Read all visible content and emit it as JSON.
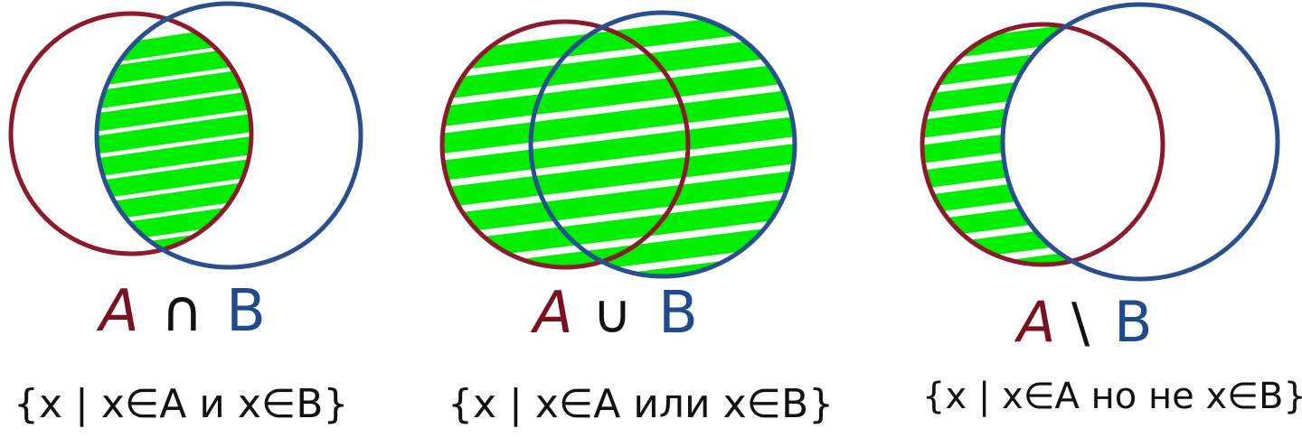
{
  "colors": {
    "set_a": "#8b1a2b",
    "set_b": "#2a4f8f",
    "fill": "#00ee00",
    "ink": "#111111"
  },
  "diagrams": [
    {
      "operation": "intersection",
      "label_a": "A",
      "operator": "∩",
      "label_b": "B",
      "notation": "{x | x∈A и x∈B}"
    },
    {
      "operation": "union",
      "label_a": "A",
      "operator": "∪",
      "label_b": "B",
      "notation": "{x | x∈A или x∈B}"
    },
    {
      "operation": "difference",
      "label_a": "A",
      "operator": "\\",
      "label_b": "B",
      "notation": "{x | x∈A но не x∈B}"
    }
  ]
}
